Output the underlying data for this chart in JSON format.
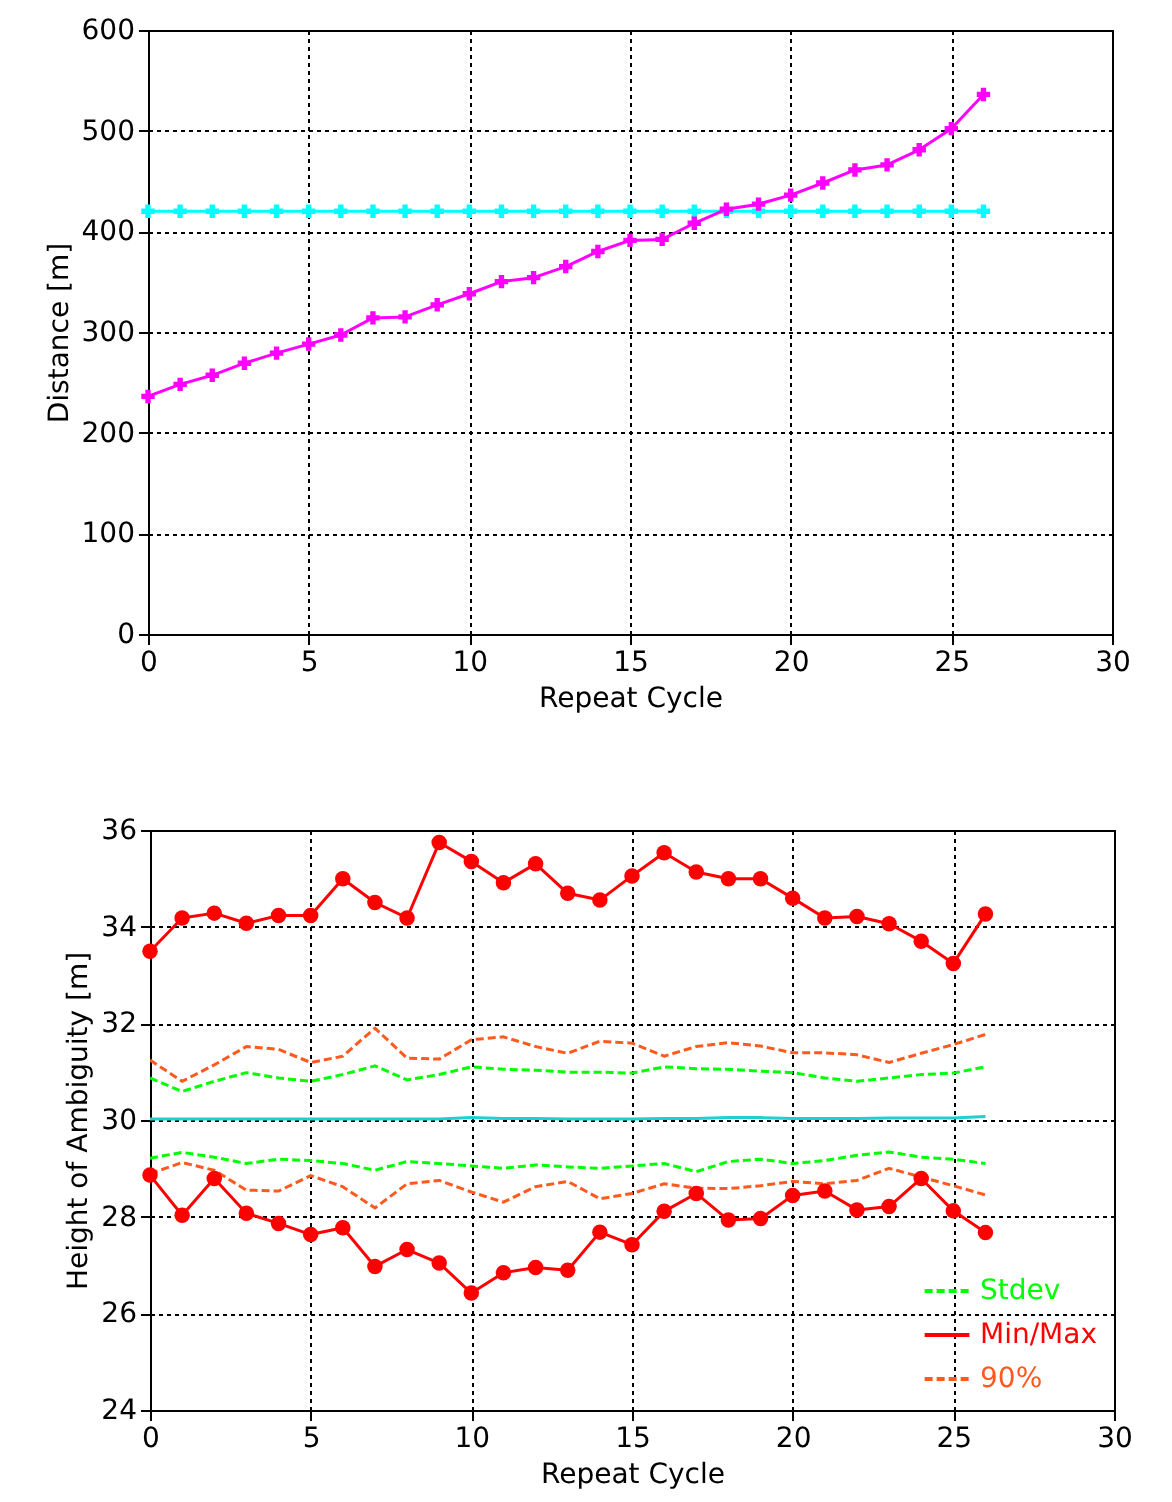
{
  "chart_data": [
    {
      "type": "line",
      "xlabel": "Repeat Cycle",
      "ylabel": "Distance [m]",
      "xlim": [
        0,
        30
      ],
      "xticks": [
        0,
        5,
        10,
        15,
        20,
        25,
        30
      ],
      "ylim": [
        0,
        600
      ],
      "yticks": [
        0,
        100,
        200,
        300,
        400,
        500,
        600
      ],
      "grid": true,
      "marker": "cross",
      "line_style": "solid",
      "x": [
        0,
        1,
        2,
        3,
        4,
        5,
        6,
        7,
        8,
        9,
        10,
        11,
        12,
        13,
        14,
        15,
        16,
        17,
        18,
        19,
        20,
        21,
        22,
        23,
        24,
        25,
        26
      ],
      "series": [
        {
          "color": "#ff00ff",
          "values": [
            236,
            248,
            257,
            269,
            279,
            288,
            297,
            314,
            315,
            327,
            338,
            350,
            354,
            365,
            380,
            391,
            392,
            408,
            422,
            427,
            436,
            448,
            461,
            466,
            481,
            502,
            536
          ]
        },
        {
          "color": "#00ffff",
          "values": [
            420,
            420,
            420,
            420,
            420,
            420,
            420,
            420,
            420,
            420,
            420,
            420,
            420,
            420,
            420,
            420,
            420,
            420,
            420,
            420,
            420,
            420,
            420,
            420,
            420,
            420,
            420
          ]
        }
      ]
    },
    {
      "type": "line",
      "xlabel": "Repeat Cycle",
      "ylabel": "Height of Ambiguity [m]",
      "xlim": [
        0,
        30
      ],
      "xticks": [
        0,
        5,
        10,
        15,
        20,
        25,
        30
      ],
      "ylim": [
        24,
        36
      ],
      "yticks": [
        24,
        26,
        28,
        30,
        32,
        34,
        36
      ],
      "grid": true,
      "legend": "bottom right",
      "x": [
        0,
        1,
        2,
        3,
        4,
        5,
        6,
        7,
        8,
        9,
        10,
        11,
        12,
        13,
        14,
        15,
        16,
        17,
        18,
        19,
        20,
        21,
        22,
        23,
        24,
        25,
        26
      ],
      "series": [
        {
          "name": "Stdev",
          "color": "#00ff00",
          "line_style": "dashed",
          "marker": "none",
          "values": [
            30.87,
            30.59,
            30.8,
            30.98,
            30.87,
            30.8,
            30.94,
            31.12,
            30.83,
            30.94,
            31.1,
            31.05,
            31.03,
            30.99,
            30.99,
            30.97,
            31.1,
            31.06,
            31.05,
            31.01,
            30.98,
            30.87,
            30.8,
            30.87,
            30.94,
            30.97,
            31.1
          ]
        },
        {
          "color": "#00ff00",
          "line_style": "dashed",
          "marker": "none",
          "values": [
            29.21,
            29.33,
            29.23,
            29.1,
            29.19,
            29.16,
            29.1,
            28.96,
            29.14,
            29.1,
            29.05,
            29.0,
            29.07,
            29.03,
            29.0,
            29.05,
            29.1,
            28.93,
            29.14,
            29.19,
            29.1,
            29.16,
            29.27,
            29.34,
            29.23,
            29.19,
            29.1
          ]
        },
        {
          "name": "Min/Max",
          "color": "#ff0000",
          "line_style": "solid",
          "marker": "circle",
          "values": [
            33.49,
            34.18,
            34.28,
            34.07,
            34.23,
            34.23,
            34.99,
            34.5,
            34.18,
            35.74,
            35.35,
            34.91,
            35.3,
            34.69,
            34.55,
            35.05,
            35.53,
            35.13,
            34.99,
            34.99,
            34.59,
            34.18,
            34.21,
            34.06,
            33.7,
            33.24,
            34.26
          ]
        },
        {
          "color": "#ff0000",
          "line_style": "solid",
          "marker": "circle",
          "values": [
            28.86,
            28.03,
            28.79,
            28.07,
            27.86,
            27.63,
            27.77,
            26.97,
            27.32,
            27.04,
            26.42,
            26.84,
            26.95,
            26.89,
            27.68,
            27.42,
            28.11,
            28.48,
            27.93,
            27.96,
            28.44,
            28.53,
            28.14,
            28.21,
            28.79,
            28.12,
            27.67
          ]
        },
        {
          "name": "90%",
          "color": "#ff5a1e",
          "line_style": "dashed",
          "marker": "none",
          "values": [
            31.24,
            30.8,
            31.14,
            31.52,
            31.46,
            31.19,
            31.32,
            31.9,
            31.28,
            31.26,
            31.66,
            31.72,
            31.52,
            31.38,
            31.63,
            31.59,
            31.32,
            31.52,
            31.6,
            31.53,
            31.39,
            31.39,
            31.35,
            31.19,
            31.38,
            31.56,
            31.77
          ]
        },
        {
          "color": "#ff5a1e",
          "line_style": "dashed",
          "marker": "none",
          "values": [
            28.89,
            29.12,
            28.96,
            28.55,
            28.53,
            28.85,
            28.62,
            28.18,
            28.68,
            28.75,
            28.51,
            28.3,
            28.62,
            28.73,
            28.37,
            28.48,
            28.68,
            28.59,
            28.58,
            28.64,
            28.73,
            28.68,
            28.75,
            29.0,
            28.82,
            28.64,
            28.45
          ]
        },
        {
          "color": "#20d0d0",
          "line_style": "solid",
          "marker": "none",
          "values": [
            30.02,
            30.02,
            30.02,
            30.02,
            30.02,
            30.02,
            30.02,
            30.02,
            30.02,
            30.02,
            30.05,
            30.03,
            30.03,
            30.02,
            30.02,
            30.02,
            30.03,
            30.03,
            30.05,
            30.05,
            30.03,
            30.03,
            30.03,
            30.04,
            30.04,
            30.04,
            30.07
          ]
        }
      ]
    }
  ]
}
